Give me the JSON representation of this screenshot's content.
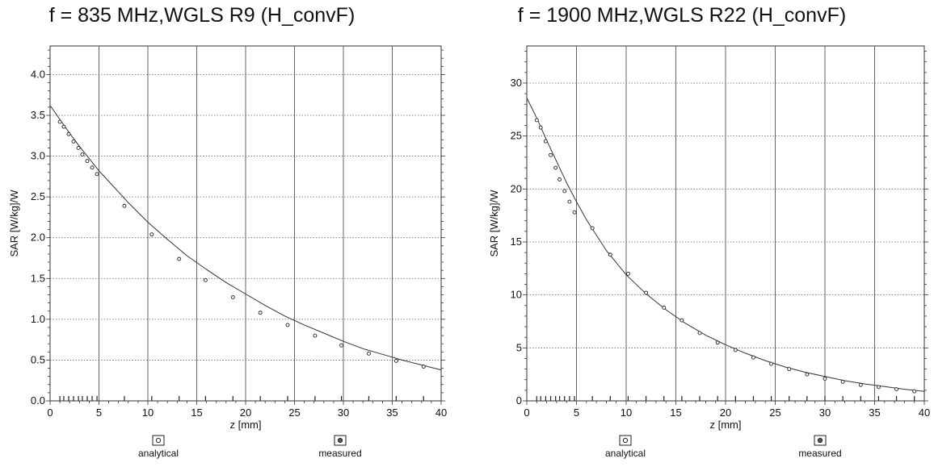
{
  "chart_data": [
    {
      "type": "line",
      "title": "f = 835 MHz,WGLS R9 (H_convF)",
      "xlabel": "z [mm]",
      "ylabel": "SAR [W/kg]/W",
      "xlim": [
        0,
        40
      ],
      "ylim": [
        0,
        4.35
      ],
      "xticks": [
        0,
        5,
        10,
        15,
        20,
        25,
        30,
        35,
        40
      ],
      "xtick_labels": [
        "0",
        "5",
        "10",
        "15",
        "20",
        "25",
        "30",
        "35",
        "40"
      ],
      "yticks": [
        0,
        0.5,
        1.0,
        1.5,
        2.0,
        2.5,
        3.0,
        3.5,
        4.0
      ],
      "ytick_labels": [
        "0.0",
        "0.5",
        "1.0",
        "1.5",
        "2.0",
        "2.5",
        "3.0",
        "3.5",
        "4.0"
      ],
      "grid": true,
      "legend_position": "bottom",
      "series": [
        {
          "name": "analytical",
          "x": [
            0,
            1,
            2,
            3,
            4,
            5,
            6,
            8,
            10,
            12,
            14,
            16,
            18,
            20,
            22,
            24,
            26,
            28,
            30,
            32,
            34,
            36,
            38,
            40
          ],
          "y": [
            3.62,
            3.45,
            3.28,
            3.12,
            2.97,
            2.82,
            2.69,
            2.43,
            2.19,
            1.98,
            1.78,
            1.61,
            1.45,
            1.31,
            1.17,
            1.04,
            0.93,
            0.83,
            0.73,
            0.64,
            0.57,
            0.5,
            0.44,
            0.38
          ]
        },
        {
          "name": "measured",
          "x": [
            1.0,
            1.4,
            1.9,
            2.4,
            2.9,
            3.3,
            3.8,
            4.3,
            4.8,
            7.6,
            10.4,
            13.2,
            15.9,
            18.7,
            21.5,
            24.3,
            27.1,
            29.8,
            32.6,
            35.4,
            38.2
          ],
          "y": [
            3.42,
            3.36,
            3.27,
            3.18,
            3.1,
            3.02,
            2.94,
            2.86,
            2.78,
            2.39,
            2.04,
            1.74,
            1.48,
            1.27,
            1.08,
            0.93,
            0.8,
            0.68,
            0.58,
            0.49,
            0.42
          ]
        }
      ]
    },
    {
      "type": "line",
      "title": "f = 1900 MHz,WGLS R22 (H_convF)",
      "xlabel": "z [mm]",
      "ylabel": "SAR [W/kg]/W",
      "xlim": [
        0,
        40
      ],
      "ylim": [
        0,
        33.5
      ],
      "xticks": [
        0,
        5,
        10,
        15,
        20,
        25,
        30,
        35,
        40
      ],
      "xtick_labels": [
        "0",
        "5",
        "10",
        "15",
        "20",
        "25",
        "30",
        "35",
        "40"
      ],
      "yticks": [
        0,
        5,
        10,
        15,
        20,
        25,
        30
      ],
      "ytick_labels": [
        "0",
        "5",
        "10",
        "15",
        "20",
        "25",
        "30"
      ],
      "grid": true,
      "legend_position": "bottom",
      "series": [
        {
          "name": "analytical",
          "x": [
            0,
            1,
            2,
            3,
            4,
            5,
            6,
            8,
            10,
            12,
            14,
            16,
            18,
            20,
            22,
            24,
            26,
            28,
            30,
            32,
            34,
            36,
            38,
            40
          ],
          "y": [
            28.6,
            26.7,
            24.6,
            22.6,
            20.6,
            18.8,
            17.1,
            14.2,
            11.9,
            10.1,
            8.6,
            7.3,
            6.2,
            5.3,
            4.5,
            3.8,
            3.2,
            2.7,
            2.3,
            1.9,
            1.6,
            1.35,
            1.1,
            0.9
          ]
        },
        {
          "name": "measured",
          "x": [
            1.0,
            1.4,
            1.9,
            2.4,
            2.9,
            3.3,
            3.8,
            4.3,
            4.8,
            6.6,
            8.4,
            10.2,
            12.0,
            13.8,
            15.6,
            17.4,
            19.2,
            21.0,
            22.8,
            24.6,
            26.4,
            28.2,
            30.0,
            31.8,
            33.6,
            35.4,
            37.2,
            39.0
          ],
          "y": [
            26.5,
            25.8,
            24.5,
            23.2,
            22.0,
            20.9,
            19.8,
            18.8,
            17.8,
            16.3,
            13.8,
            12.0,
            10.2,
            8.8,
            7.6,
            6.4,
            5.5,
            4.8,
            4.1,
            3.5,
            3.0,
            2.5,
            2.1,
            1.8,
            1.5,
            1.3,
            1.1,
            0.9
          ]
        }
      ]
    }
  ]
}
